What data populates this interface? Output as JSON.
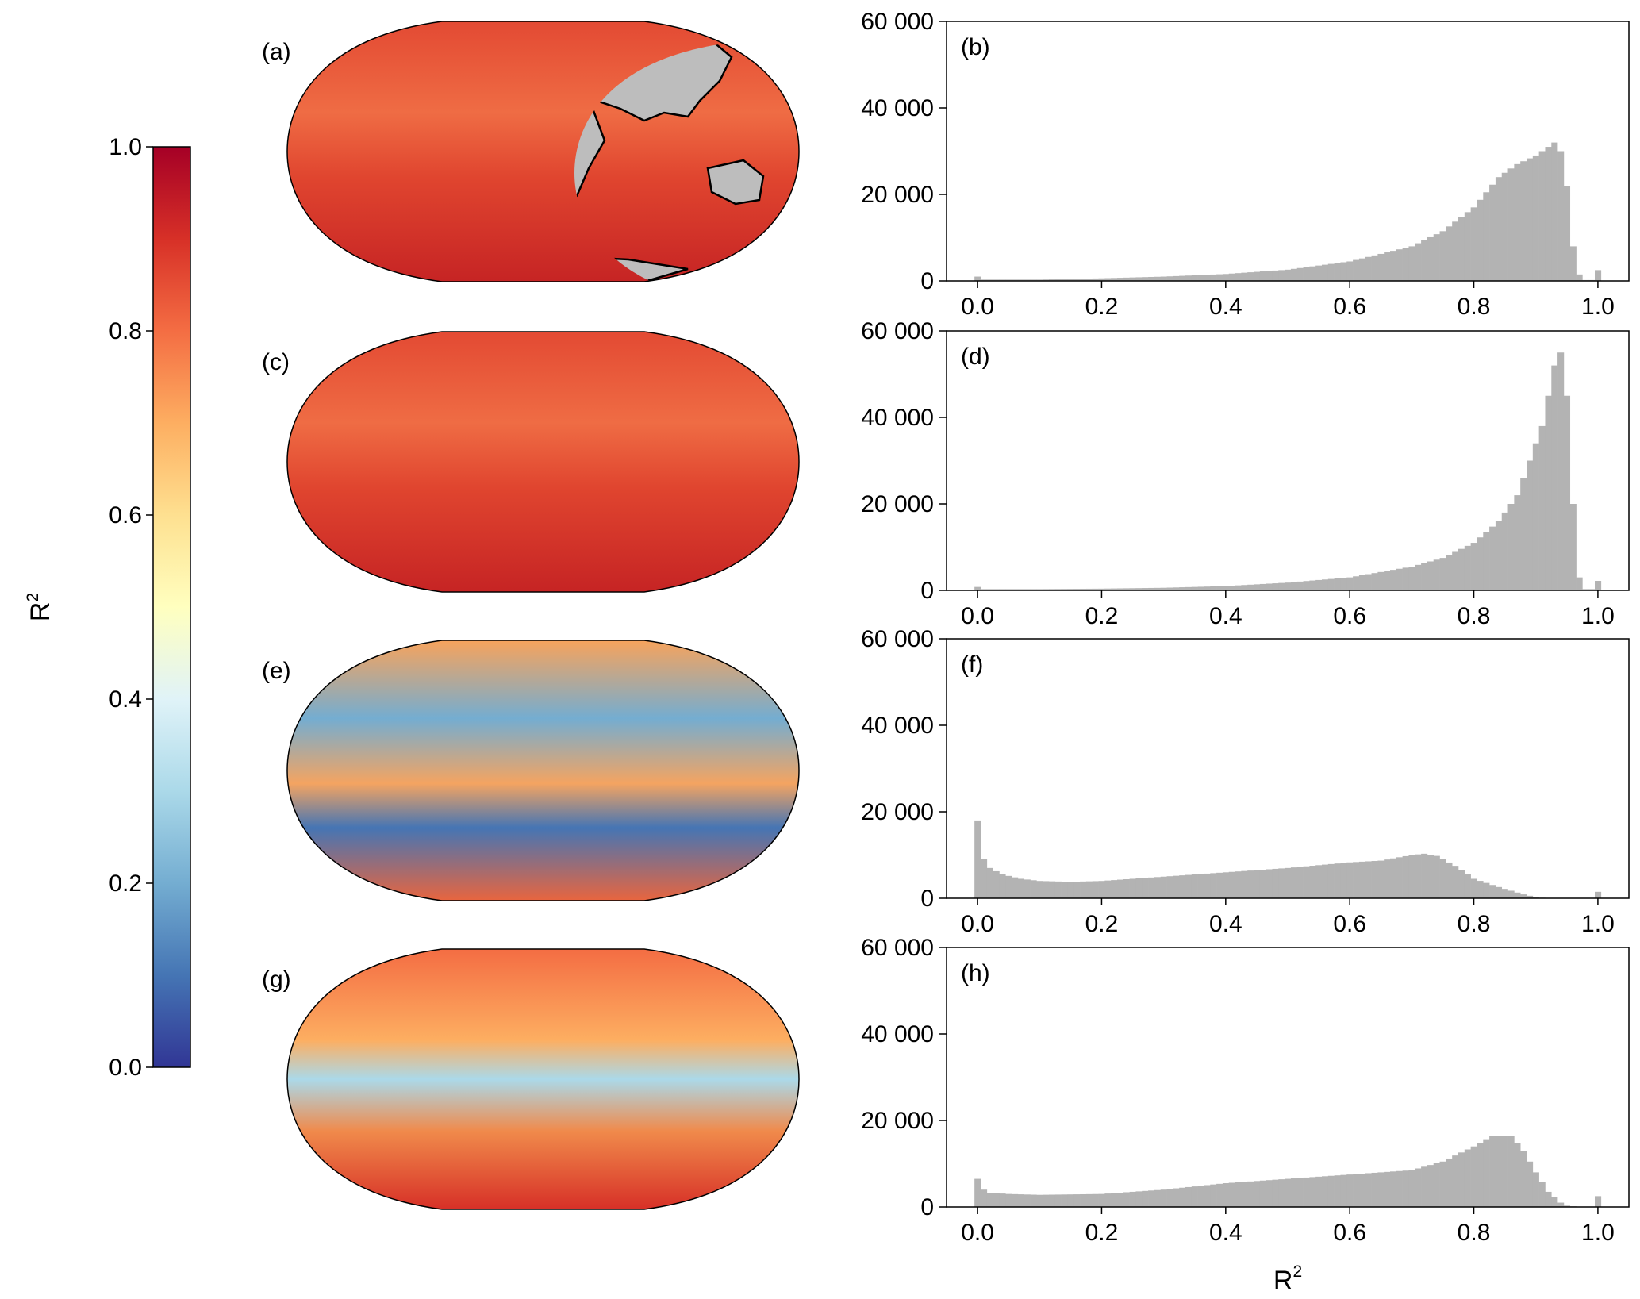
{
  "colorbar": {
    "label": "R",
    "label_sup": "2",
    "ticks": [
      "0.0",
      "0.2",
      "0.4",
      "0.6",
      "0.8",
      "1.0"
    ],
    "range": [
      0,
      1
    ],
    "colormap": "RdYlBu_r",
    "stops": [
      "#313695",
      "#4575b4",
      "#74add1",
      "#abd9e9",
      "#e0f3f8",
      "#ffffbf",
      "#fee090",
      "#fdae61",
      "#f46d43",
      "#d73027",
      "#a50026"
    ]
  },
  "colors": {
    "land": "#bdbdbd",
    "histogram_bar": "#b3b3b3",
    "map_ocean_high": "#d73027",
    "map_ocean_low": "#4575b4"
  },
  "maps": [
    {
      "label": "(a)",
      "ocean": "mostly-high"
    },
    {
      "label": "(c)",
      "ocean": "mostly-high"
    },
    {
      "label": "(e)",
      "ocean": "mixed-low"
    },
    {
      "label": "(g)",
      "ocean": "mixed-medium"
    }
  ],
  "chart_data": [
    {
      "type": "bar",
      "panel": "(b)",
      "xlim": [
        -0.05,
        1.05
      ],
      "ylim": [
        0,
        60000
      ],
      "x_ticks": [
        "0.0",
        "0.2",
        "0.4",
        "0.6",
        "0.8",
        "1.0"
      ],
      "y_ticks": [
        "0",
        "20 000",
        "40 000",
        "60 000"
      ],
      "xlabel": "",
      "ylabel": "",
      "bin_width": 0.01,
      "profile": [
        [
          0,
          1000
        ],
        [
          0.01,
          300
        ],
        [
          0.1,
          300
        ],
        [
          0.2,
          600
        ],
        [
          0.3,
          1000
        ],
        [
          0.4,
          1600
        ],
        [
          0.5,
          2600
        ],
        [
          0.6,
          4500
        ],
        [
          0.7,
          8000
        ],
        [
          0.75,
          11500
        ],
        [
          0.8,
          17000
        ],
        [
          0.84,
          24000
        ],
        [
          0.87,
          27000
        ],
        [
          0.9,
          29000
        ],
        [
          0.92,
          31000
        ],
        [
          0.93,
          32000
        ],
        [
          0.94,
          30000
        ],
        [
          0.95,
          22000
        ],
        [
          0.96,
          8000
        ],
        [
          0.97,
          1500
        ],
        [
          0.98,
          200
        ],
        [
          0.99,
          200
        ],
        [
          1.0,
          2500
        ]
      ]
    },
    {
      "type": "bar",
      "panel": "(d)",
      "xlim": [
        -0.05,
        1.05
      ],
      "ylim": [
        0,
        60000
      ],
      "x_ticks": [
        "0.0",
        "0.2",
        "0.4",
        "0.6",
        "0.8",
        "1.0"
      ],
      "y_ticks": [
        "0",
        "20 000",
        "40 000",
        "60 000"
      ],
      "xlabel": "",
      "ylabel": "",
      "bin_width": 0.01,
      "profile": [
        [
          0,
          800
        ],
        [
          0.01,
          300
        ],
        [
          0.1,
          300
        ],
        [
          0.2,
          400
        ],
        [
          0.3,
          600
        ],
        [
          0.4,
          1000
        ],
        [
          0.5,
          1800
        ],
        [
          0.6,
          3000
        ],
        [
          0.7,
          5500
        ],
        [
          0.75,
          7500
        ],
        [
          0.8,
          11000
        ],
        [
          0.84,
          16000
        ],
        [
          0.87,
          22000
        ],
        [
          0.89,
          30000
        ],
        [
          0.91,
          38000
        ],
        [
          0.92,
          45000
        ],
        [
          0.93,
          52000
        ],
        [
          0.94,
          55000
        ],
        [
          0.95,
          45000
        ],
        [
          0.96,
          20000
        ],
        [
          0.97,
          3000
        ],
        [
          0.98,
          300
        ],
        [
          0.99,
          300
        ],
        [
          1.0,
          2200
        ]
      ]
    },
    {
      "type": "bar",
      "panel": "(f)",
      "xlim": [
        -0.05,
        1.05
      ],
      "ylim": [
        0,
        60000
      ],
      "x_ticks": [
        "0.0",
        "0.2",
        "0.4",
        "0.6",
        "0.8",
        "1.0"
      ],
      "y_ticks": [
        "0",
        "20 000",
        "40 000",
        "60 000"
      ],
      "xlabel": "",
      "ylabel": "",
      "bin_width": 0.01,
      "profile": [
        [
          0,
          18000
        ],
        [
          0.01,
          9000
        ],
        [
          0.02,
          7000
        ],
        [
          0.04,
          5500
        ],
        [
          0.07,
          4500
        ],
        [
          0.1,
          4000
        ],
        [
          0.15,
          3800
        ],
        [
          0.2,
          4000
        ],
        [
          0.3,
          5000
        ],
        [
          0.4,
          6000
        ],
        [
          0.5,
          7000
        ],
        [
          0.6,
          8300
        ],
        [
          0.65,
          8700
        ],
        [
          0.7,
          10000
        ],
        [
          0.72,
          10300
        ],
        [
          0.74,
          9800
        ],
        [
          0.77,
          7500
        ],
        [
          0.8,
          4500
        ],
        [
          0.84,
          2600
        ],
        [
          0.88,
          900
        ],
        [
          0.9,
          250
        ],
        [
          0.92,
          0
        ],
        [
          0.99,
          0
        ],
        [
          1.0,
          1500
        ]
      ]
    },
    {
      "type": "bar",
      "panel": "(h)",
      "xlim": [
        -0.05,
        1.05
      ],
      "ylim": [
        0,
        60000
      ],
      "x_ticks": [
        "0.0",
        "0.2",
        "0.4",
        "0.6",
        "0.8",
        "1.0"
      ],
      "y_ticks": [
        "0",
        "20 000",
        "40 000",
        "60 000"
      ],
      "xlabel": "R",
      "xlabel_sup": "2",
      "ylabel": "",
      "bin_width": 0.01,
      "profile": [
        [
          0,
          6500
        ],
        [
          0.01,
          4000
        ],
        [
          0.02,
          3300
        ],
        [
          0.05,
          3000
        ],
        [
          0.1,
          2800
        ],
        [
          0.2,
          3000
        ],
        [
          0.3,
          4000
        ],
        [
          0.4,
          5500
        ],
        [
          0.5,
          6500
        ],
        [
          0.6,
          7500
        ],
        [
          0.7,
          8500
        ],
        [
          0.75,
          10500
        ],
        [
          0.8,
          14000
        ],
        [
          0.83,
          16500
        ],
        [
          0.86,
          16500
        ],
        [
          0.88,
          13000
        ],
        [
          0.9,
          8000
        ],
        [
          0.92,
          3500
        ],
        [
          0.94,
          1000
        ],
        [
          0.95,
          300
        ],
        [
          0.97,
          0
        ],
        [
          0.99,
          0
        ],
        [
          1.0,
          2500
        ]
      ]
    }
  ]
}
